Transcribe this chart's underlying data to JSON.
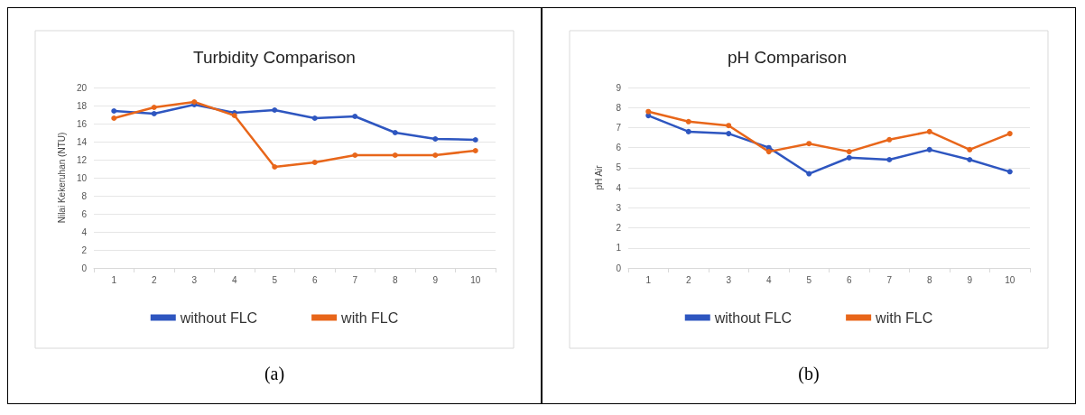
{
  "chart_data": [
    {
      "type": "line",
      "title": "Turbidity Comparison",
      "ylabel": "Nilai Kekeruhan (NTU)",
      "categories": [
        "1",
        "2",
        "3",
        "4",
        "5",
        "6",
        "7",
        "8",
        "9",
        "10"
      ],
      "series": [
        {
          "name": "without FLC",
          "color": "#2e56c0",
          "values": [
            17.4,
            17.1,
            18.1,
            17.2,
            17.5,
            16.6,
            16.8,
            15.0,
            14.3,
            14.2
          ]
        },
        {
          "name": "with FLC",
          "color": "#e8661a",
          "values": [
            16.6,
            17.8,
            18.4,
            16.9,
            11.2,
            11.7,
            12.5,
            12.5,
            12.5,
            13.0
          ]
        }
      ],
      "ylim": [
        0,
        20
      ],
      "yticks": [
        0,
        2,
        4,
        6,
        8,
        10,
        12,
        14,
        16,
        18,
        20
      ],
      "grid": "y",
      "legend": "bottom",
      "marker": "circle",
      "annotations": [
        "(a)"
      ]
    },
    {
      "type": "line",
      "title": "pH Comparison",
      "ylabel": "pH Air",
      "categories": [
        "1",
        "2",
        "3",
        "4",
        "5",
        "6",
        "7",
        "8",
        "9",
        "10"
      ],
      "series": [
        {
          "name": "without FLC",
          "color": "#2e56c0",
          "values": [
            7.6,
            6.8,
            6.7,
            6.0,
            4.7,
            5.5,
            5.4,
            5.9,
            5.4,
            4.8
          ]
        },
        {
          "name": "with FLC",
          "color": "#e8661a",
          "values": [
            7.8,
            7.3,
            7.1,
            5.8,
            6.2,
            5.8,
            6.4,
            6.8,
            5.9,
            6.7
          ]
        }
      ],
      "ylim": [
        0,
        9
      ],
      "yticks": [
        0,
        1,
        2,
        3,
        4,
        5,
        6,
        7,
        8,
        9
      ],
      "grid": "y",
      "legend": "bottom",
      "marker": "circle",
      "annotations": [
        "(b)"
      ]
    }
  ]
}
